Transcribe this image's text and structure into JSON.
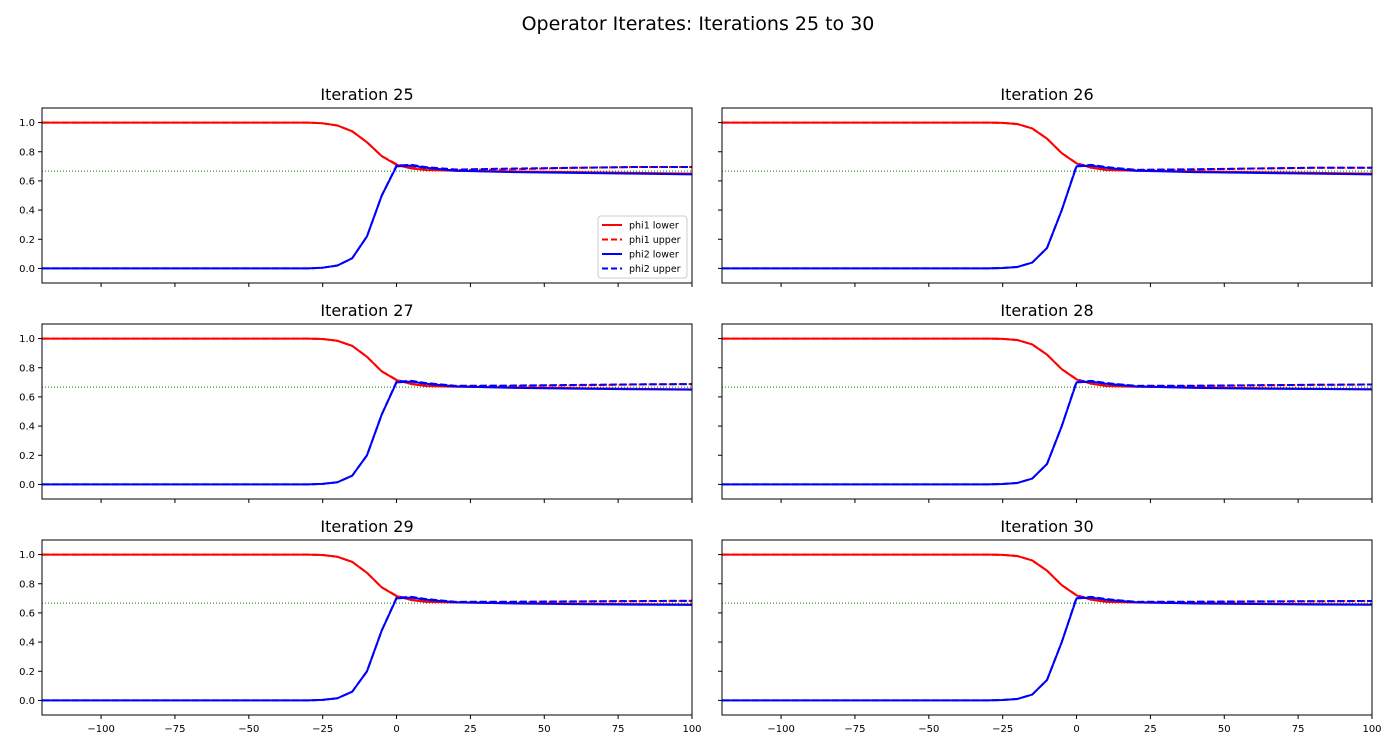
{
  "title": "Operator Iterates: Iterations 25 to 30",
  "colors": {
    "phi1": "#ff0000",
    "phi2": "#0000ff",
    "reference": "#008000",
    "axes": "#000000"
  },
  "legend": {
    "panel": 0,
    "placement": "lower-right",
    "entries": [
      "phi1 lower",
      "phi1 upper",
      "phi2 lower",
      "phi2 upper"
    ]
  },
  "chart_data": [
    {
      "type": "line",
      "title": "Iteration 25",
      "xlim": [
        -120,
        100
      ],
      "ylim": [
        -0.1,
        1.1
      ],
      "reference_y": 0.667,
      "x_ticks": [
        -100,
        -75,
        -50,
        -25,
        0,
        25,
        50,
        75,
        100
      ],
      "y_ticks": [
        0.0,
        0.2,
        0.4,
        0.6,
        0.8,
        1.0
      ],
      "series": [
        {
          "name": "phi1 lower",
          "style": "solid",
          "x": [
            -120,
            -30,
            -25,
            -20,
            -15,
            -10,
            -5,
            0,
            5,
            10,
            20,
            40,
            60,
            80,
            100
          ],
          "y": [
            1.0,
            1.0,
            0.995,
            0.98,
            0.94,
            0.865,
            0.77,
            0.71,
            0.685,
            0.675,
            0.67,
            0.665,
            0.66,
            0.655,
            0.65
          ]
        },
        {
          "name": "phi1 upper",
          "style": "dashed",
          "x": [
            -120,
            -30,
            -25,
            -20,
            -15,
            -10,
            -5,
            0,
            5,
            10,
            20,
            40,
            60,
            80,
            100
          ],
          "y": [
            1.0,
            1.0,
            0.995,
            0.98,
            0.94,
            0.865,
            0.77,
            0.715,
            0.69,
            0.68,
            0.675,
            0.68,
            0.69,
            0.695,
            0.695
          ]
        },
        {
          "name": "phi2 lower",
          "style": "solid",
          "x": [
            -120,
            -30,
            -25,
            -20,
            -15,
            -10,
            -5,
            0,
            5,
            10,
            20,
            40,
            60,
            80,
            100
          ],
          "y": [
            0.0,
            0.0,
            0.005,
            0.02,
            0.07,
            0.22,
            0.5,
            0.7,
            0.705,
            0.69,
            0.67,
            0.66,
            0.655,
            0.65,
            0.645
          ]
        },
        {
          "name": "phi2 upper",
          "style": "dashed",
          "x": [
            -120,
            -30,
            -25,
            -20,
            -15,
            -10,
            -5,
            0,
            5,
            10,
            20,
            40,
            60,
            80,
            100
          ],
          "y": [
            0.0,
            0.0,
            0.005,
            0.02,
            0.07,
            0.22,
            0.5,
            0.705,
            0.71,
            0.695,
            0.678,
            0.685,
            0.69,
            0.695,
            0.695
          ]
        }
      ]
    },
    {
      "type": "line",
      "title": "Iteration 26",
      "xlim": [
        -120,
        100
      ],
      "ylim": [
        -0.1,
        1.1
      ],
      "reference_y": 0.667,
      "x_ticks": [
        -100,
        -75,
        -50,
        -25,
        0,
        25,
        50,
        75,
        100
      ],
      "y_ticks": [
        0.0,
        0.2,
        0.4,
        0.6,
        0.8,
        1.0
      ],
      "series": [
        {
          "name": "phi1 lower",
          "style": "solid",
          "x": [
            -120,
            -30,
            -25,
            -20,
            -15,
            -10,
            -5,
            0,
            5,
            10,
            20,
            40,
            60,
            80,
            100
          ],
          "y": [
            1.0,
            1.0,
            0.998,
            0.99,
            0.96,
            0.89,
            0.79,
            0.72,
            0.69,
            0.675,
            0.67,
            0.665,
            0.66,
            0.655,
            0.65
          ]
        },
        {
          "name": "phi1 upper",
          "style": "dashed",
          "x": [
            -120,
            -30,
            -25,
            -20,
            -15,
            -10,
            -5,
            0,
            5,
            10,
            20,
            40,
            60,
            80,
            100
          ],
          "y": [
            1.0,
            1.0,
            0.998,
            0.99,
            0.96,
            0.89,
            0.79,
            0.722,
            0.692,
            0.68,
            0.675,
            0.678,
            0.685,
            0.69,
            0.69
          ]
        },
        {
          "name": "phi2 lower",
          "style": "solid",
          "x": [
            -120,
            -30,
            -25,
            -20,
            -15,
            -10,
            -5,
            0,
            5,
            10,
            20,
            40,
            60,
            80,
            100
          ],
          "y": [
            0.0,
            0.0,
            0.003,
            0.01,
            0.04,
            0.14,
            0.4,
            0.7,
            0.705,
            0.69,
            0.67,
            0.66,
            0.655,
            0.65,
            0.645
          ]
        },
        {
          "name": "phi2 upper",
          "style": "dashed",
          "x": [
            -120,
            -30,
            -25,
            -20,
            -15,
            -10,
            -5,
            0,
            5,
            10,
            20,
            40,
            60,
            80,
            100
          ],
          "y": [
            0.0,
            0.0,
            0.003,
            0.01,
            0.04,
            0.14,
            0.4,
            0.705,
            0.71,
            0.695,
            0.676,
            0.68,
            0.685,
            0.69,
            0.69
          ]
        }
      ]
    },
    {
      "type": "line",
      "title": "Iteration 27",
      "xlim": [
        -120,
        100
      ],
      "ylim": [
        -0.1,
        1.1
      ],
      "reference_y": 0.667,
      "x_ticks": [
        -100,
        -75,
        -50,
        -25,
        0,
        25,
        50,
        75,
        100
      ],
      "y_ticks": [
        0.0,
        0.2,
        0.4,
        0.6,
        0.8,
        1.0
      ],
      "series": [
        {
          "name": "phi1 lower",
          "style": "solid",
          "x": [
            -120,
            -30,
            -25,
            -20,
            -15,
            -10,
            -5,
            0,
            5,
            10,
            20,
            40,
            60,
            80,
            100
          ],
          "y": [
            1.0,
            1.0,
            0.997,
            0.985,
            0.95,
            0.875,
            0.775,
            0.715,
            0.688,
            0.675,
            0.67,
            0.665,
            0.66,
            0.655,
            0.652
          ]
        },
        {
          "name": "phi1 upper",
          "style": "dashed",
          "x": [
            -120,
            -30,
            -25,
            -20,
            -15,
            -10,
            -5,
            0,
            5,
            10,
            20,
            40,
            60,
            80,
            100
          ],
          "y": [
            1.0,
            1.0,
            0.997,
            0.985,
            0.95,
            0.875,
            0.775,
            0.718,
            0.69,
            0.678,
            0.673,
            0.675,
            0.68,
            0.685,
            0.688
          ]
        },
        {
          "name": "phi2 lower",
          "style": "solid",
          "x": [
            -120,
            -30,
            -25,
            -20,
            -15,
            -10,
            -5,
            0,
            5,
            10,
            20,
            40,
            60,
            80,
            100
          ],
          "y": [
            0.0,
            0.0,
            0.004,
            0.015,
            0.06,
            0.2,
            0.48,
            0.7,
            0.705,
            0.69,
            0.672,
            0.662,
            0.657,
            0.653,
            0.65
          ]
        },
        {
          "name": "phi2 upper",
          "style": "dashed",
          "x": [
            -120,
            -30,
            -25,
            -20,
            -15,
            -10,
            -5,
            0,
            5,
            10,
            20,
            40,
            60,
            80,
            100
          ],
          "y": [
            0.0,
            0.0,
            0.004,
            0.015,
            0.06,
            0.2,
            0.48,
            0.705,
            0.71,
            0.695,
            0.676,
            0.678,
            0.682,
            0.686,
            0.688
          ]
        }
      ]
    },
    {
      "type": "line",
      "title": "Iteration 28",
      "xlim": [
        -120,
        100
      ],
      "ylim": [
        -0.1,
        1.1
      ],
      "reference_y": 0.667,
      "x_ticks": [
        -100,
        -75,
        -50,
        -25,
        0,
        25,
        50,
        75,
        100
      ],
      "y_ticks": [
        0.0,
        0.2,
        0.4,
        0.6,
        0.8,
        1.0
      ],
      "series": [
        {
          "name": "phi1 lower",
          "style": "solid",
          "x": [
            -120,
            -30,
            -25,
            -20,
            -15,
            -10,
            -5,
            0,
            5,
            10,
            20,
            40,
            60,
            80,
            100
          ],
          "y": [
            1.0,
            1.0,
            0.998,
            0.99,
            0.96,
            0.89,
            0.79,
            0.72,
            0.69,
            0.675,
            0.67,
            0.665,
            0.66,
            0.656,
            0.653
          ]
        },
        {
          "name": "phi1 upper",
          "style": "dashed",
          "x": [
            -120,
            -30,
            -25,
            -20,
            -15,
            -10,
            -5,
            0,
            5,
            10,
            20,
            40,
            60,
            80,
            100
          ],
          "y": [
            1.0,
            1.0,
            0.998,
            0.99,
            0.96,
            0.89,
            0.79,
            0.722,
            0.692,
            0.678,
            0.673,
            0.675,
            0.679,
            0.683,
            0.685
          ]
        },
        {
          "name": "phi2 lower",
          "style": "solid",
          "x": [
            -120,
            -30,
            -25,
            -20,
            -15,
            -10,
            -5,
            0,
            5,
            10,
            20,
            40,
            60,
            80,
            100
          ],
          "y": [
            0.0,
            0.0,
            0.003,
            0.01,
            0.04,
            0.14,
            0.4,
            0.7,
            0.705,
            0.69,
            0.672,
            0.662,
            0.657,
            0.654,
            0.652
          ]
        },
        {
          "name": "phi2 upper",
          "style": "dashed",
          "x": [
            -120,
            -30,
            -25,
            -20,
            -15,
            -10,
            -5,
            0,
            5,
            10,
            20,
            40,
            60,
            80,
            100
          ],
          "y": [
            0.0,
            0.0,
            0.003,
            0.01,
            0.04,
            0.14,
            0.4,
            0.705,
            0.71,
            0.695,
            0.676,
            0.677,
            0.68,
            0.683,
            0.685
          ]
        }
      ]
    },
    {
      "type": "line",
      "title": "Iteration 29",
      "xlim": [
        -120,
        100
      ],
      "ylim": [
        -0.1,
        1.1
      ],
      "reference_y": 0.667,
      "x_ticks": [
        -100,
        -75,
        -50,
        -25,
        0,
        25,
        50,
        75,
        100
      ],
      "y_ticks": [
        0.0,
        0.2,
        0.4,
        0.6,
        0.8,
        1.0
      ],
      "series": [
        {
          "name": "phi1 lower",
          "style": "solid",
          "x": [
            -120,
            -30,
            -25,
            -20,
            -15,
            -10,
            -5,
            0,
            5,
            10,
            20,
            40,
            60,
            80,
            100
          ],
          "y": [
            1.0,
            1.0,
            0.997,
            0.985,
            0.95,
            0.875,
            0.775,
            0.715,
            0.688,
            0.676,
            0.671,
            0.667,
            0.663,
            0.66,
            0.657
          ]
        },
        {
          "name": "phi1 upper",
          "style": "dashed",
          "x": [
            -120,
            -30,
            -25,
            -20,
            -15,
            -10,
            -5,
            0,
            5,
            10,
            20,
            40,
            60,
            80,
            100
          ],
          "y": [
            1.0,
            1.0,
            0.997,
            0.985,
            0.95,
            0.875,
            0.775,
            0.718,
            0.69,
            0.678,
            0.673,
            0.675,
            0.678,
            0.681,
            0.683
          ]
        },
        {
          "name": "phi2 lower",
          "style": "solid",
          "x": [
            -120,
            -30,
            -25,
            -20,
            -15,
            -10,
            -5,
            0,
            5,
            10,
            20,
            40,
            60,
            80,
            100
          ],
          "y": [
            0.0,
            0.0,
            0.004,
            0.015,
            0.06,
            0.2,
            0.48,
            0.7,
            0.705,
            0.69,
            0.673,
            0.665,
            0.66,
            0.657,
            0.655
          ]
        },
        {
          "name": "phi2 upper",
          "style": "dashed",
          "x": [
            -120,
            -30,
            -25,
            -20,
            -15,
            -10,
            -5,
            0,
            5,
            10,
            20,
            40,
            60,
            80,
            100
          ],
          "y": [
            0.0,
            0.0,
            0.004,
            0.015,
            0.06,
            0.2,
            0.48,
            0.705,
            0.71,
            0.695,
            0.676,
            0.677,
            0.679,
            0.681,
            0.683
          ]
        }
      ]
    },
    {
      "type": "line",
      "title": "Iteration 30",
      "xlim": [
        -120,
        100
      ],
      "ylim": [
        -0.1,
        1.1
      ],
      "reference_y": 0.667,
      "x_ticks": [
        -100,
        -75,
        -50,
        -25,
        0,
        25,
        50,
        75,
        100
      ],
      "y_ticks": [
        0.0,
        0.2,
        0.4,
        0.6,
        0.8,
        1.0
      ],
      "series": [
        {
          "name": "phi1 lower",
          "style": "solid",
          "x": [
            -120,
            -30,
            -25,
            -20,
            -15,
            -10,
            -5,
            0,
            5,
            10,
            20,
            40,
            60,
            80,
            100
          ],
          "y": [
            1.0,
            1.0,
            0.998,
            0.99,
            0.96,
            0.89,
            0.79,
            0.72,
            0.69,
            0.676,
            0.671,
            0.667,
            0.663,
            0.66,
            0.658
          ]
        },
        {
          "name": "phi1 upper",
          "style": "dashed",
          "x": [
            -120,
            -30,
            -25,
            -20,
            -15,
            -10,
            -5,
            0,
            5,
            10,
            20,
            40,
            60,
            80,
            100
          ],
          "y": [
            1.0,
            1.0,
            0.998,
            0.99,
            0.96,
            0.89,
            0.79,
            0.722,
            0.692,
            0.678,
            0.673,
            0.675,
            0.678,
            0.68,
            0.682
          ]
        },
        {
          "name": "phi2 lower",
          "style": "solid",
          "x": [
            -120,
            -30,
            -25,
            -20,
            -15,
            -10,
            -5,
            0,
            5,
            10,
            20,
            40,
            60,
            80,
            100
          ],
          "y": [
            0.0,
            0.0,
            0.003,
            0.01,
            0.04,
            0.14,
            0.4,
            0.7,
            0.705,
            0.69,
            0.673,
            0.665,
            0.661,
            0.658,
            0.656
          ]
        },
        {
          "name": "phi2 upper",
          "style": "dashed",
          "x": [
            -120,
            -30,
            -25,
            -20,
            -15,
            -10,
            -5,
            0,
            5,
            10,
            20,
            40,
            60,
            80,
            100
          ],
          "y": [
            0.0,
            0.0,
            0.003,
            0.01,
            0.04,
            0.14,
            0.4,
            0.705,
            0.71,
            0.695,
            0.676,
            0.677,
            0.679,
            0.68,
            0.682
          ]
        }
      ]
    }
  ]
}
